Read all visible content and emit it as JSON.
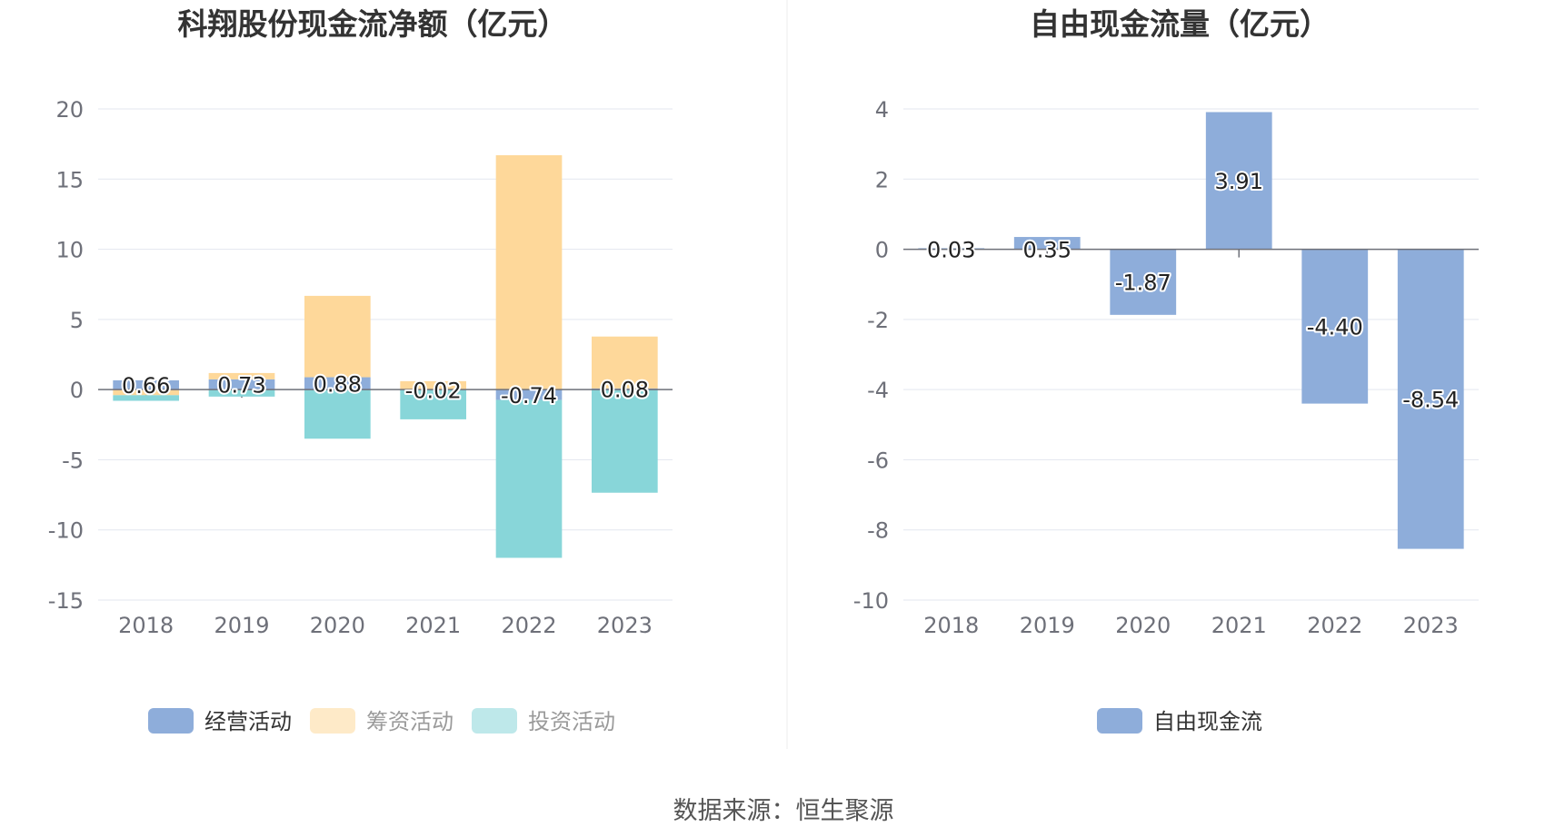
{
  "chart_data": [
    {
      "type": "bar",
      "stacked": true,
      "title": "科翔股份现金流净额（亿元）",
      "categories": [
        "2018",
        "2019",
        "2020",
        "2021",
        "2022",
        "2023"
      ],
      "ylim": [
        -15,
        20
      ],
      "yticks": [
        20,
        15,
        10,
        5,
        0,
        -5,
        -10,
        -15
      ],
      "grid": true,
      "legend_position": "bottom",
      "series": [
        {
          "name": "经营活动",
          "color": "#8eadda",
          "values": [
            0.66,
            0.73,
            0.88,
            -0.02,
            -0.74,
            0.08
          ],
          "labels": [
            "0.66",
            "0.73",
            "0.88",
            "-0.02",
            "-0.74",
            "0.08"
          ]
        },
        {
          "name": "筹资活动",
          "color": "#fed89a",
          "values": [
            -0.4,
            0.45,
            5.8,
            0.6,
            16.7,
            3.7
          ]
        },
        {
          "name": "投资活动",
          "color": "#88d6d9",
          "values": [
            -0.4,
            -0.5,
            -3.5,
            -2.1,
            -11.25,
            -7.35
          ]
        }
      ]
    },
    {
      "type": "bar",
      "title": "自由现金流量（亿元）",
      "categories": [
        "2018",
        "2019",
        "2020",
        "2021",
        "2022",
        "2023"
      ],
      "ylim": [
        -10,
        4
      ],
      "yticks": [
        4,
        2,
        0,
        -2,
        -4,
        -6,
        -8,
        -10
      ],
      "grid": true,
      "legend_position": "bottom",
      "series": [
        {
          "name": "自由现金流",
          "color": "#8eadda",
          "values": [
            0.03,
            0.35,
            -1.87,
            3.91,
            -4.4,
            -8.54
          ],
          "labels": [
            "0.03",
            "0.35",
            "-1.87",
            "3.91",
            "-4.40",
            "-8.54"
          ]
        }
      ]
    }
  ],
  "source_text": "数据来源：恒生聚源"
}
